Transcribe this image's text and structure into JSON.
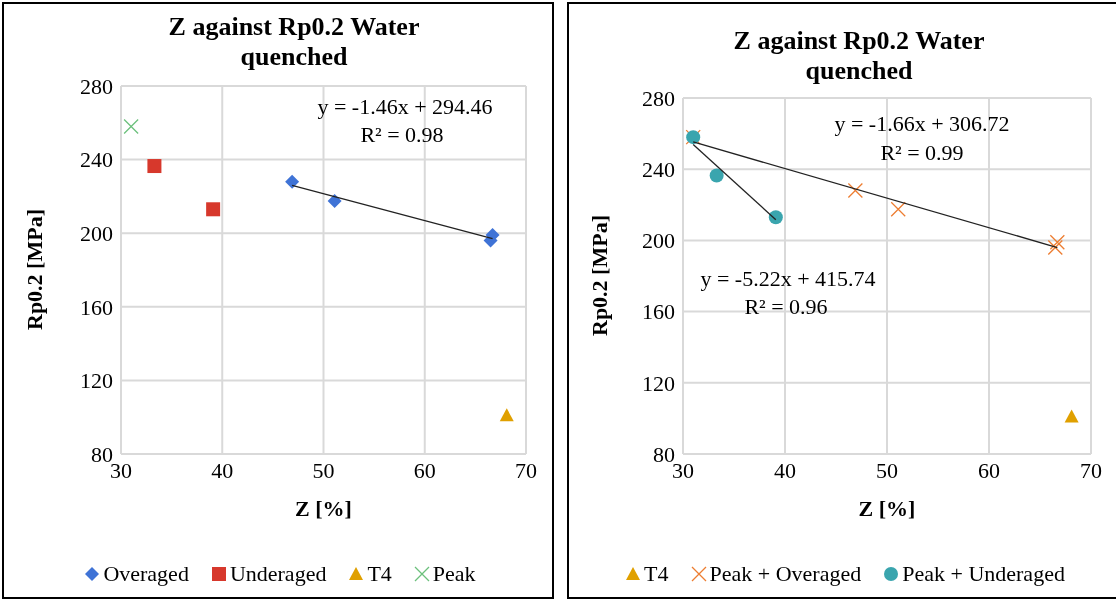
{
  "chart_data": [
    {
      "type": "scatter",
      "title": "Z against Rp0.2 Water quenched",
      "xlabel": "Z [%]",
      "ylabel": "Rp0.2 [MPa]",
      "xlim": [
        30,
        70
      ],
      "xticks": [
        30,
        40,
        50,
        60,
        70
      ],
      "ylim": [
        80,
        280
      ],
      "yticks": [
        80,
        120,
        160,
        200,
        240,
        280
      ],
      "grid": true,
      "legend": "bottom",
      "annotations": [
        "y = -1.46x + 294.46",
        "R² = 0.98"
      ],
      "series": [
        {
          "name": "Overaged",
          "color": "#3f73d6",
          "marker": "diamond",
          "x": [
            46.9,
            51.1,
            66.5,
            66.7
          ],
          "values": [
            228,
            217.5,
            196,
            199
          ]
        },
        {
          "name": "Underaged",
          "color": "#d7382c",
          "marker": "square",
          "x": [
            33.3,
            39.1
          ],
          "values": [
            236.5,
            213
          ]
        },
        {
          "name": "T4",
          "color": "#e0a000",
          "marker": "triangle",
          "x": [
            68.1
          ],
          "values": [
            101
          ]
        },
        {
          "name": "Peak",
          "color": "#6cc07c",
          "marker": "cross",
          "x": [
            31
          ],
          "values": [
            258
          ]
        },
        {
          "type": "line",
          "color": "#222222",
          "marker": "none",
          "x": [
            46.9,
            66.7
          ],
          "values": [
            226,
            197.1
          ]
        }
      ]
    },
    {
      "type": "scatter",
      "title": "Z against Rp0.2 Water quenched",
      "xlabel": "Z [%]",
      "ylabel": "Rp0.2 [MPa]",
      "xlim": [
        30,
        70
      ],
      "xticks": [
        30,
        40,
        50,
        60,
        70
      ],
      "ylim": [
        80,
        280
      ],
      "yticks": [
        80,
        120,
        160,
        200,
        240,
        280
      ],
      "grid": true,
      "legend": "bottom",
      "annotations": [
        "y = -1.66x + 306.72",
        "R² = 0.99",
        "y = -5.22x + 415.74",
        "R² = 0.96"
      ],
      "series": [
        {
          "name": "T4",
          "color": "#e0a000",
          "marker": "triangle",
          "x": [
            68.1
          ],
          "values": [
            101
          ]
        },
        {
          "name": "Peak + Overaged",
          "color": "#ed7d31",
          "marker": "cross",
          "x": [
            31,
            46.9,
            51.1,
            66.5,
            66.7
          ],
          "values": [
            258,
            228,
            217.5,
            196,
            199
          ]
        },
        {
          "name": "Peak + Underaged",
          "color": "#3aa5ae",
          "marker": "circle",
          "x": [
            31,
            33.3,
            39.1
          ],
          "values": [
            258,
            236.5,
            213
          ]
        },
        {
          "type": "line",
          "color": "#222222",
          "marker": "none",
          "x": [
            31,
            66.7
          ],
          "values": [
            255.3,
            196
          ]
        },
        {
          "type": "line",
          "color": "#222222",
          "marker": "none",
          "x": [
            31,
            39.1
          ],
          "values": [
            253.9,
            211.6
          ]
        }
      ]
    }
  ]
}
